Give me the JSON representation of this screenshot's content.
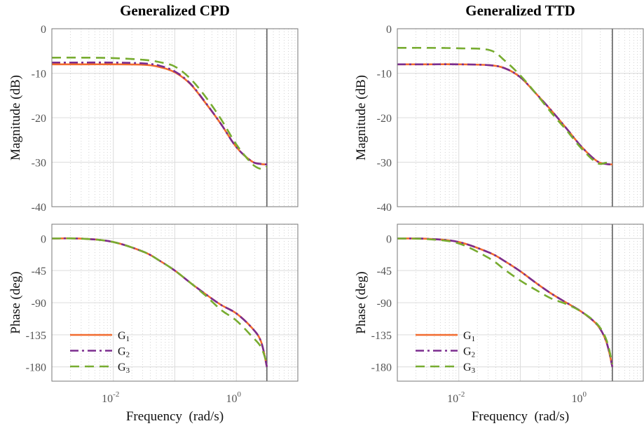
{
  "colors": {
    "G1": "#F26B2E",
    "G2": "#7B2D8E",
    "G3": "#77AC30",
    "nyquist_line": "#555555"
  },
  "legend": [
    "G1",
    "G2",
    "G3"
  ],
  "chart_data": [
    {
      "type": "line",
      "title": "Generalized CPD",
      "ylabel": "Magnitude (dB)",
      "xlabel": "",
      "xscale": "log",
      "xlim": [
        0.001,
        10
      ],
      "ylim": [
        -40,
        0
      ],
      "yticks": [
        0,
        -10,
        -20,
        -30,
        -40
      ],
      "xticks": [],
      "grid": "major+minor",
      "vertical_line_x": 3.14,
      "x": [
        0.001,
        0.00316,
        0.01,
        0.0316,
        0.0562,
        0.1,
        0.178,
        0.316,
        0.562,
        1,
        1.78,
        2.51,
        3.14
      ],
      "series": [
        {
          "name": "G1",
          "style": "solid",
          "values": [
            -8,
            -8,
            -8,
            -8.1,
            -8.6,
            -9.8,
            -12.4,
            -16.7,
            -21.4,
            -26.6,
            -29.8,
            -30.4,
            -30.5
          ]
        },
        {
          "name": "G2",
          "style": "dashdot",
          "values": [
            -7.6,
            -7.6,
            -7.6,
            -7.8,
            -8.3,
            -9.6,
            -12.3,
            -16.6,
            -21.4,
            -26.6,
            -29.8,
            -30.4,
            -30.5
          ]
        },
        {
          "name": "G3",
          "style": "dashed",
          "values": [
            -6.5,
            -6.5,
            -6.6,
            -7.0,
            -7.5,
            -8.5,
            -11.2,
            -15.3,
            -20.3,
            -26,
            -30.3,
            -31.5,
            -31
          ]
        }
      ]
    },
    {
      "type": "line",
      "title": "",
      "ylabel": "Phase (deg)",
      "xlabel": "Frequency  (rad/s)",
      "xscale": "log",
      "xlim": [
        0.001,
        10
      ],
      "ylim": [
        -200,
        20
      ],
      "yticks": [
        0,
        -45,
        -90,
        -135,
        -180
      ],
      "xticks": [
        {
          "base": "10",
          "exp": "-2",
          "value": 0.01
        },
        {
          "base": "10",
          "exp": "0",
          "value": 1
        }
      ],
      "grid": "major+minor",
      "vertical_line_x": 3.14,
      "legend_position": "bottom-left",
      "x": [
        0.001,
        0.00316,
        0.01,
        0.0316,
        0.0562,
        0.1,
        0.178,
        0.316,
        0.562,
        1,
        1.78,
        2.51,
        3.14
      ],
      "series": [
        {
          "name": "G1",
          "style": "solid",
          "values": [
            0,
            -0.3,
            -5,
            -19,
            -31,
            -45,
            -62,
            -78,
            -93,
            -105,
            -125,
            -144,
            -180
          ]
        },
        {
          "name": "G2",
          "style": "dashdot",
          "values": [
            0,
            -0.3,
            -5,
            -19,
            -31,
            -45,
            -62,
            -78,
            -93,
            -105,
            -125,
            -144,
            -180
          ]
        },
        {
          "name": "G3",
          "style": "dashed",
          "values": [
            0,
            -0.3,
            -5,
            -19,
            -31,
            -45,
            -62,
            -80,
            -100,
            -115,
            -137,
            -152,
            -175
          ]
        }
      ]
    },
    {
      "type": "line",
      "title": "Generalized TTD",
      "ylabel": "Magnitude (dB)",
      "xlabel": "",
      "xscale": "log",
      "xlim": [
        0.001,
        10
      ],
      "ylim": [
        -40,
        0
      ],
      "yticks": [
        0,
        -10,
        -20,
        -30,
        -40
      ],
      "xticks": [],
      "grid": "major+minor",
      "vertical_line_x": 3.14,
      "x": [
        0.001,
        0.00316,
        0.01,
        0.0316,
        0.0562,
        0.1,
        0.178,
        0.316,
        0.562,
        1,
        1.78,
        2.51,
        3.14
      ],
      "series": [
        {
          "name": "G1",
          "style": "solid",
          "values": [
            -8,
            -8,
            -8,
            -8.2,
            -8.9,
            -10.9,
            -14.5,
            -18.3,
            -22.4,
            -26.6,
            -29.8,
            -30.4,
            -30.5
          ]
        },
        {
          "name": "G2",
          "style": "dashdot",
          "values": [
            -8,
            -8,
            -8,
            -8.2,
            -8.9,
            -10.9,
            -14.5,
            -18.3,
            -22.4,
            -26.6,
            -29.8,
            -30.4,
            -30.5
          ]
        },
        {
          "name": "G3",
          "style": "dashed",
          "values": [
            -4.3,
            -4.3,
            -4.4,
            -4.8,
            -7.2,
            -10.5,
            -14.5,
            -18.8,
            -22.8,
            -27,
            -30.2,
            -30.1,
            -30.1
          ]
        }
      ]
    },
    {
      "type": "line",
      "title": "",
      "ylabel": "Phase (deg)",
      "xlabel": "Frequency  (rad/s)",
      "xscale": "log",
      "xlim": [
        0.001,
        10
      ],
      "ylim": [
        -200,
        20
      ],
      "yticks": [
        0,
        -45,
        -90,
        -135,
        -180
      ],
      "xticks": [
        {
          "base": "10",
          "exp": "-2",
          "value": 0.01
        },
        {
          "base": "10",
          "exp": "0",
          "value": 1
        }
      ],
      "grid": "major+minor",
      "vertical_line_x": 3.14,
      "legend_position": "bottom-left",
      "x": [
        0.001,
        0.00316,
        0.01,
        0.0316,
        0.0562,
        0.1,
        0.178,
        0.316,
        0.562,
        1,
        1.78,
        2.51,
        3.14
      ],
      "series": [
        {
          "name": "G1",
          "style": "solid",
          "values": [
            0,
            -0.5,
            -5,
            -20,
            -32,
            -46,
            -62,
            -77,
            -90,
            -103,
            -121,
            -145,
            -180
          ]
        },
        {
          "name": "G2",
          "style": "dashdot",
          "values": [
            0,
            -0.5,
            -5,
            -20,
            -32,
            -46,
            -62,
            -77,
            -90,
            -103,
            -121,
            -145,
            -180
          ]
        },
        {
          "name": "G3",
          "style": "dashed",
          "values": [
            0,
            -1,
            -7,
            -28,
            -44,
            -59,
            -72,
            -84,
            -92,
            -103,
            -120,
            -142,
            -176
          ]
        }
      ]
    }
  ]
}
